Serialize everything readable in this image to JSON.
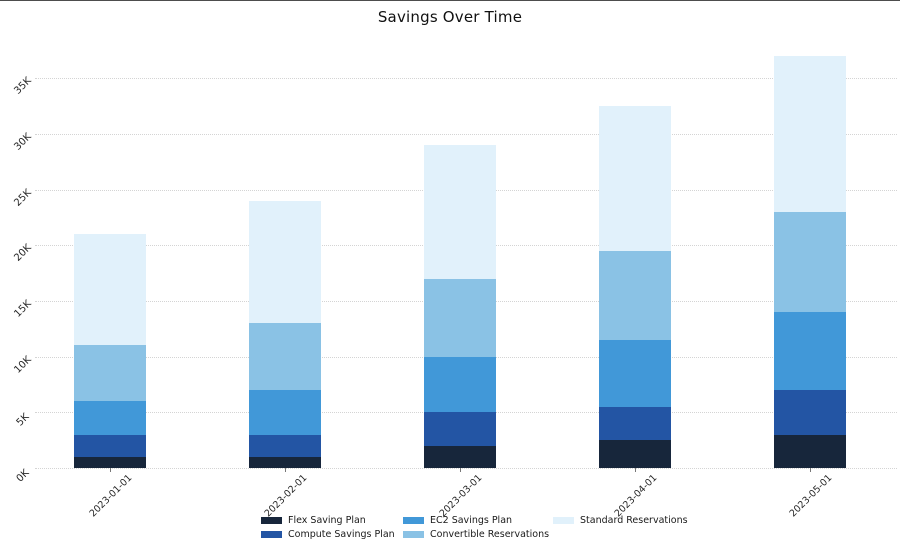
{
  "chart_data": {
    "type": "bar",
    "stacked": true,
    "title": "Savings Over Time",
    "categories": [
      "2023-01-01",
      "2023-02-01",
      "2023-03-01",
      "2023-04-01",
      "2023-05-01"
    ],
    "series": [
      {
        "name": "Flex Saving Plan",
        "color": "#17263b",
        "values": [
          1000,
          1000,
          2000,
          2500,
          3000
        ]
      },
      {
        "name": "Compute Savings Plan",
        "color": "#2355a4",
        "values": [
          2000,
          2000,
          3000,
          3000,
          4000
        ]
      },
      {
        "name": "EC2 Savings Plan",
        "color": "#4198d8",
        "values": [
          3000,
          4000,
          5000,
          6000,
          7000
        ]
      },
      {
        "name": "Convertible Reservations",
        "color": "#8ac2e5",
        "values": [
          5000,
          6000,
          7000,
          8000,
          9000
        ]
      },
      {
        "name": "Standard Reservations",
        "color": "#e1f1fb",
        "values": [
          10000,
          11000,
          12000,
          13000,
          14000
        ]
      }
    ],
    "totals": [
      21000,
      24000,
      29000,
      32500,
      37000
    ],
    "y_ticks": [
      {
        "label": "0K",
        "value": 0
      },
      {
        "label": "5K",
        "value": 5000
      },
      {
        "label": "10K",
        "value": 10000
      },
      {
        "label": "15K",
        "value": 15000
      },
      {
        "label": "20K",
        "value": 20000
      },
      {
        "label": "25K",
        "value": 25000
      },
      {
        "label": "30K",
        "value": 30000
      },
      {
        "label": "35K",
        "value": 35000
      }
    ],
    "ylim": [
      0,
      37500
    ],
    "xlabel": "",
    "ylabel": "",
    "grid": "horizontal-dotted",
    "legend_position": "bottom",
    "tick_label_rotation_deg": 45
  }
}
